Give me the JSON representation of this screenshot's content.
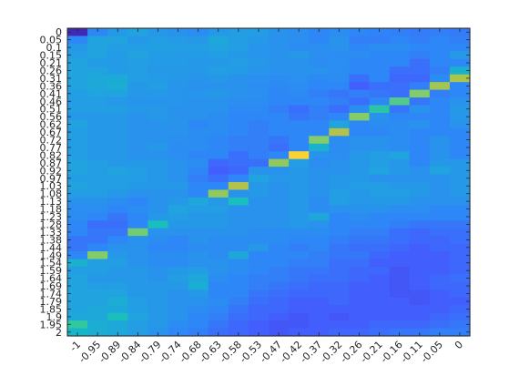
{
  "chart_data": {
    "type": "heatmap",
    "title": "",
    "xlabel": "",
    "ylabel": "",
    "x_tick_labels": [
      "-1",
      "-0.95",
      "-0.89",
      "-0.84",
      "-0.79",
      "-0.74",
      "-0.68",
      "-0.63",
      "-0.58",
      "-0.53",
      "-0.47",
      "-0.42",
      "-0.37",
      "-0.32",
      "-0.26",
      "-0.21",
      "-0.16",
      "-0.11",
      "-0.05",
      "0"
    ],
    "y_tick_labels": [
      "0",
      "0.05",
      "0.1",
      "0.15",
      "0.21",
      "0.26",
      "0.31",
      "0.36",
      "0.41",
      "0.46",
      "0.51",
      "0.56",
      "0.62",
      "0.67",
      "0.72",
      "0.77",
      "0.82",
      "0.87",
      "0.92",
      "0.97",
      "1.03",
      "1.08",
      "1.13",
      "1.18",
      "1.23",
      "1.28",
      "1.33",
      "1.38",
      "1.44",
      "1.49",
      "1.54",
      "1.59",
      "1.64",
      "1.69",
      "1.74",
      "1.79",
      "1.85",
      "1.9",
      "1.95",
      "2"
    ],
    "x_range": [
      -1,
      0
    ],
    "y_range": [
      0,
      2
    ],
    "colormap": "parula",
    "grid": false,
    "legend": "none",
    "colors": {
      "low": "#3e26a8",
      "mid": "#2ab0c8",
      "high": "#f9fb0e",
      "axis": "#262626"
    },
    "values": [
      [
        0.02,
        0.3,
        0.36,
        0.4,
        0.36,
        0.34,
        0.32,
        0.36,
        0.38,
        0.38,
        0.34,
        0.33,
        0.3,
        0.32,
        0.3,
        0.29,
        0.28,
        0.27,
        0.28,
        0.27
      ],
      [
        0.3,
        0.4,
        0.4,
        0.36,
        0.38,
        0.37,
        0.36,
        0.42,
        0.38,
        0.36,
        0.34,
        0.33,
        0.3,
        0.34,
        0.28,
        0.28,
        0.3,
        0.28,
        0.3,
        0.28
      ],
      [
        0.36,
        0.4,
        0.38,
        0.38,
        0.39,
        0.38,
        0.38,
        0.4,
        0.38,
        0.35,
        0.34,
        0.32,
        0.33,
        0.34,
        0.3,
        0.32,
        0.32,
        0.3,
        0.3,
        0.3
      ],
      [
        0.38,
        0.4,
        0.37,
        0.4,
        0.37,
        0.37,
        0.37,
        0.38,
        0.36,
        0.35,
        0.34,
        0.36,
        0.33,
        0.32,
        0.32,
        0.3,
        0.3,
        0.28,
        0.3,
        0.36
      ],
      [
        0.4,
        0.37,
        0.37,
        0.38,
        0.37,
        0.37,
        0.36,
        0.36,
        0.38,
        0.36,
        0.34,
        0.34,
        0.32,
        0.33,
        0.3,
        0.3,
        0.3,
        0.24,
        0.3,
        0.3
      ],
      [
        0.4,
        0.4,
        0.37,
        0.38,
        0.36,
        0.36,
        0.36,
        0.38,
        0.37,
        0.35,
        0.34,
        0.34,
        0.34,
        0.32,
        0.3,
        0.3,
        0.24,
        0.24,
        0.28,
        0.46
      ],
      [
        0.4,
        0.42,
        0.43,
        0.38,
        0.37,
        0.36,
        0.35,
        0.36,
        0.34,
        0.33,
        0.32,
        0.33,
        0.31,
        0.32,
        0.24,
        0.3,
        0.22,
        0.22,
        0.32,
        0.75
      ],
      [
        0.4,
        0.42,
        0.44,
        0.36,
        0.38,
        0.35,
        0.34,
        0.34,
        0.34,
        0.32,
        0.31,
        0.32,
        0.3,
        0.3,
        0.2,
        0.24,
        0.24,
        0.28,
        0.74,
        0.3
      ],
      [
        0.38,
        0.4,
        0.4,
        0.36,
        0.36,
        0.35,
        0.35,
        0.36,
        0.34,
        0.33,
        0.3,
        0.31,
        0.28,
        0.26,
        0.28,
        0.26,
        0.24,
        0.7,
        0.28,
        0.3
      ],
      [
        0.38,
        0.38,
        0.36,
        0.35,
        0.35,
        0.35,
        0.34,
        0.34,
        0.33,
        0.32,
        0.3,
        0.3,
        0.3,
        0.28,
        0.24,
        0.3,
        0.64,
        0.26,
        0.3,
        0.34
      ],
      [
        0.38,
        0.38,
        0.38,
        0.36,
        0.36,
        0.34,
        0.34,
        0.34,
        0.31,
        0.31,
        0.28,
        0.24,
        0.28,
        0.24,
        0.32,
        0.58,
        0.26,
        0.34,
        0.3,
        0.36
      ],
      [
        0.36,
        0.36,
        0.36,
        0.34,
        0.36,
        0.34,
        0.34,
        0.32,
        0.3,
        0.3,
        0.3,
        0.26,
        0.28,
        0.3,
        0.7,
        0.34,
        0.3,
        0.3,
        0.3,
        0.36
      ],
      [
        0.4,
        0.36,
        0.36,
        0.34,
        0.34,
        0.34,
        0.3,
        0.32,
        0.3,
        0.28,
        0.3,
        0.3,
        0.3,
        0.4,
        0.3,
        0.32,
        0.32,
        0.34,
        0.3,
        0.34
      ],
      [
        0.38,
        0.36,
        0.36,
        0.34,
        0.34,
        0.34,
        0.32,
        0.32,
        0.3,
        0.28,
        0.3,
        0.3,
        0.3,
        0.76,
        0.3,
        0.3,
        0.32,
        0.3,
        0.3,
        0.3
      ],
      [
        0.38,
        0.36,
        0.36,
        0.34,
        0.34,
        0.33,
        0.32,
        0.3,
        0.28,
        0.28,
        0.26,
        0.3,
        0.7,
        0.32,
        0.34,
        0.34,
        0.32,
        0.3,
        0.34,
        0.3
      ],
      [
        0.38,
        0.36,
        0.36,
        0.34,
        0.36,
        0.32,
        0.32,
        0.3,
        0.28,
        0.28,
        0.24,
        0.3,
        0.46,
        0.32,
        0.34,
        0.34,
        0.32,
        0.3,
        0.34,
        0.3
      ],
      [
        0.38,
        0.36,
        0.36,
        0.34,
        0.34,
        0.32,
        0.3,
        0.3,
        0.24,
        0.28,
        0.3,
        0.92,
        0.34,
        0.32,
        0.36,
        0.38,
        0.4,
        0.3,
        0.34,
        0.3
      ],
      [
        0.4,
        0.38,
        0.36,
        0.36,
        0.36,
        0.34,
        0.32,
        0.22,
        0.24,
        0.24,
        0.72,
        0.38,
        0.32,
        0.34,
        0.36,
        0.38,
        0.36,
        0.3,
        0.36,
        0.36
      ],
      [
        0.4,
        0.38,
        0.4,
        0.38,
        0.36,
        0.34,
        0.3,
        0.2,
        0.22,
        0.34,
        0.34,
        0.36,
        0.34,
        0.34,
        0.36,
        0.4,
        0.36,
        0.34,
        0.4,
        0.36
      ],
      [
        0.38,
        0.38,
        0.38,
        0.38,
        0.36,
        0.34,
        0.28,
        0.24,
        0.3,
        0.4,
        0.36,
        0.36,
        0.34,
        0.36,
        0.36,
        0.34,
        0.34,
        0.34,
        0.34,
        0.36
      ],
      [
        0.4,
        0.38,
        0.38,
        0.36,
        0.36,
        0.36,
        0.3,
        0.3,
        0.76,
        0.36,
        0.34,
        0.36,
        0.34,
        0.36,
        0.38,
        0.38,
        0.36,
        0.36,
        0.34,
        0.36
      ],
      [
        0.38,
        0.38,
        0.36,
        0.34,
        0.34,
        0.34,
        0.3,
        0.72,
        0.34,
        0.36,
        0.34,
        0.36,
        0.34,
        0.38,
        0.36,
        0.38,
        0.38,
        0.36,
        0.34,
        0.36
      ],
      [
        0.34,
        0.34,
        0.32,
        0.3,
        0.34,
        0.36,
        0.42,
        0.36,
        0.52,
        0.34,
        0.34,
        0.36,
        0.32,
        0.38,
        0.36,
        0.36,
        0.36,
        0.34,
        0.34,
        0.34
      ],
      [
        0.32,
        0.32,
        0.3,
        0.32,
        0.34,
        0.4,
        0.38,
        0.38,
        0.34,
        0.34,
        0.34,
        0.36,
        0.32,
        0.34,
        0.34,
        0.34,
        0.32,
        0.32,
        0.3,
        0.3
      ],
      [
        0.32,
        0.3,
        0.26,
        0.3,
        0.36,
        0.38,
        0.36,
        0.36,
        0.34,
        0.34,
        0.34,
        0.36,
        0.42,
        0.3,
        0.32,
        0.3,
        0.3,
        0.3,
        0.3,
        0.3
      ],
      [
        0.3,
        0.24,
        0.24,
        0.3,
        0.52,
        0.36,
        0.36,
        0.36,
        0.34,
        0.34,
        0.34,
        0.36,
        0.34,
        0.3,
        0.3,
        0.3,
        0.28,
        0.26,
        0.26,
        0.26
      ],
      [
        0.3,
        0.26,
        0.26,
        0.68,
        0.34,
        0.34,
        0.34,
        0.34,
        0.34,
        0.32,
        0.32,
        0.32,
        0.32,
        0.3,
        0.28,
        0.28,
        0.24,
        0.22,
        0.24,
        0.24
      ],
      [
        0.26,
        0.26,
        0.3,
        0.34,
        0.32,
        0.3,
        0.34,
        0.32,
        0.32,
        0.32,
        0.32,
        0.3,
        0.3,
        0.28,
        0.26,
        0.26,
        0.24,
        0.22,
        0.22,
        0.24
      ],
      [
        0.26,
        0.3,
        0.34,
        0.34,
        0.3,
        0.3,
        0.32,
        0.32,
        0.32,
        0.36,
        0.3,
        0.28,
        0.3,
        0.26,
        0.24,
        0.24,
        0.22,
        0.2,
        0.22,
        0.22
      ],
      [
        0.3,
        0.7,
        0.36,
        0.34,
        0.32,
        0.32,
        0.34,
        0.32,
        0.42,
        0.3,
        0.3,
        0.3,
        0.28,
        0.26,
        0.26,
        0.22,
        0.2,
        0.2,
        0.2,
        0.22
      ],
      [
        0.46,
        0.38,
        0.38,
        0.34,
        0.32,
        0.32,
        0.34,
        0.34,
        0.32,
        0.3,
        0.3,
        0.28,
        0.28,
        0.24,
        0.24,
        0.2,
        0.2,
        0.2,
        0.2,
        0.22
      ],
      [
        0.38,
        0.38,
        0.36,
        0.36,
        0.34,
        0.36,
        0.38,
        0.34,
        0.32,
        0.3,
        0.28,
        0.26,
        0.26,
        0.24,
        0.22,
        0.22,
        0.18,
        0.2,
        0.2,
        0.22
      ],
      [
        0.4,
        0.36,
        0.36,
        0.36,
        0.34,
        0.38,
        0.42,
        0.32,
        0.3,
        0.28,
        0.28,
        0.26,
        0.24,
        0.24,
        0.22,
        0.2,
        0.18,
        0.2,
        0.22,
        0.24
      ],
      [
        0.4,
        0.38,
        0.38,
        0.36,
        0.36,
        0.36,
        0.44,
        0.3,
        0.3,
        0.28,
        0.26,
        0.24,
        0.22,
        0.22,
        0.2,
        0.2,
        0.18,
        0.2,
        0.22,
        0.22
      ],
      [
        0.4,
        0.4,
        0.4,
        0.36,
        0.36,
        0.34,
        0.36,
        0.3,
        0.3,
        0.26,
        0.24,
        0.22,
        0.22,
        0.22,
        0.2,
        0.2,
        0.18,
        0.18,
        0.2,
        0.22
      ],
      [
        0.4,
        0.4,
        0.44,
        0.38,
        0.36,
        0.34,
        0.34,
        0.32,
        0.28,
        0.24,
        0.22,
        0.2,
        0.2,
        0.22,
        0.2,
        0.2,
        0.2,
        0.18,
        0.2,
        0.2
      ],
      [
        0.4,
        0.42,
        0.42,
        0.38,
        0.36,
        0.34,
        0.32,
        0.3,
        0.26,
        0.22,
        0.22,
        0.2,
        0.2,
        0.2,
        0.2,
        0.2,
        0.2,
        0.2,
        0.2,
        0.22
      ],
      [
        0.42,
        0.42,
        0.52,
        0.4,
        0.36,
        0.34,
        0.3,
        0.28,
        0.24,
        0.22,
        0.2,
        0.18,
        0.2,
        0.18,
        0.2,
        0.2,
        0.2,
        0.2,
        0.22,
        0.24
      ],
      [
        0.6,
        0.44,
        0.42,
        0.38,
        0.36,
        0.32,
        0.3,
        0.26,
        0.22,
        0.2,
        0.18,
        0.18,
        0.2,
        0.2,
        0.2,
        0.22,
        0.22,
        0.22,
        0.24,
        0.26
      ],
      [
        0.48,
        0.44,
        0.42,
        0.38,
        0.34,
        0.3,
        0.28,
        0.24,
        0.22,
        0.2,
        0.18,
        0.2,
        0.2,
        0.22,
        0.22,
        0.24,
        0.26,
        0.26,
        0.28,
        0.28
      ]
    ]
  }
}
